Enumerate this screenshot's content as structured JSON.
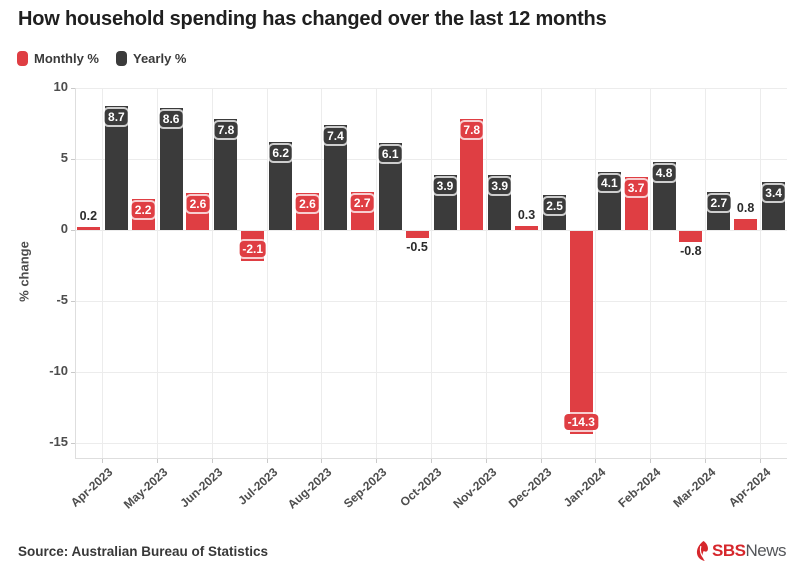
{
  "title": "How household spending has changed over the last 12 months",
  "legend": {
    "items": [
      {
        "label": "Monthly %",
        "color": "#df3e43"
      },
      {
        "label": "Yearly %",
        "color": "#3b3b3b"
      }
    ]
  },
  "chart_data": {
    "type": "bar",
    "categories": [
      "Apr-2023",
      "May-2023",
      "Jun-2023",
      "Jul-2023",
      "Aug-2023",
      "Sep-2023",
      "Oct-2023",
      "Nov-2023",
      "Dec-2023",
      "Jan-2024",
      "Feb-2024",
      "Mar-2024",
      "Apr-2024"
    ],
    "series": [
      {
        "name": "Monthly %",
        "color": "#df3e43",
        "values": [
          0.2,
          2.2,
          2.6,
          -2.1,
          2.6,
          2.7,
          -0.5,
          7.8,
          0.3,
          -14.3,
          3.7,
          -0.8,
          0.8
        ]
      },
      {
        "name": "Yearly %",
        "color": "#3b3b3b",
        "values": [
          8.7,
          8.6,
          7.8,
          6.2,
          7.4,
          6.1,
          3.9,
          3.9,
          2.5,
          4.1,
          4.8,
          2.7,
          3.4
        ]
      }
    ],
    "xlabel": "",
    "ylabel": "% change",
    "yticks": [
      10,
      5,
      0,
      -5,
      -10,
      -15
    ],
    "ylim": [
      -16,
      10
    ],
    "grid": true,
    "legend_position": "top-left",
    "value_label_threshold_for_inside_chip": 2
  },
  "footer": {
    "source": "Source: Australian Bureau of Statistics",
    "logo": {
      "icon": "sbs-flame-icon",
      "sbs": "SBS",
      "news": "News",
      "sbs_color": "#d6272c",
      "news_color": "#54565a"
    }
  }
}
